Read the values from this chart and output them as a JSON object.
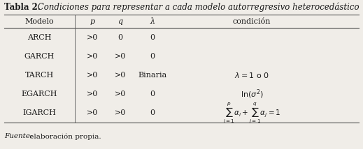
{
  "title_bold": "Tabla 2.",
  "title_italic": " Condiciones para representar a cada modelo autorregresivo heterocedástico",
  "headers": [
    "Modelo",
    "p",
    "q",
    "λ",
    "condición"
  ],
  "rows": [
    [
      "ARCH",
      ">0",
      "0",
      "0",
      ""
    ],
    [
      "GARCH",
      ">0",
      ">0",
      "0",
      ""
    ],
    [
      "TARCH",
      ">0",
      ">0",
      "Binaria",
      "lambda_1o0"
    ],
    [
      "EGARCH",
      ">0",
      ">0",
      "0",
      "ln_sigma2"
    ],
    [
      "IGARCH",
      ">0",
      ">0",
      "0",
      "igarch_formula"
    ]
  ],
  "footer_italic": "Fuente:",
  "footer_normal": " elaboración propia.",
  "bg_color": "#f0ede8",
  "text_color": "#1a1a1a",
  "line_color": "#555555"
}
